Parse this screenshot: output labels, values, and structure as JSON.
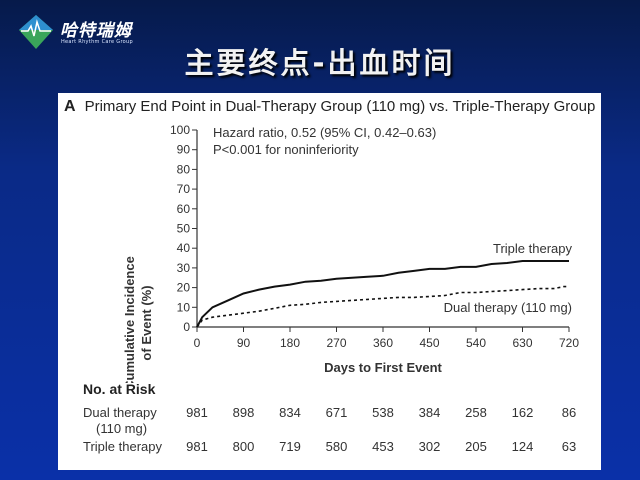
{
  "header": {
    "logo_cn": "哈特瑞姆",
    "logo_en": "Heart Rhythm Care Group",
    "slide_title": "主要终点-出血时间"
  },
  "panel": {
    "letter": "A",
    "title": "Primary End Point in Dual-Therapy Group (110 mg) vs. Triple-Therapy Group"
  },
  "annotations": {
    "hazard_ratio": "Hazard ratio, 0.52 (95% CI, 0.42–0.63)",
    "p_value": "P<0.001 for noninferiority"
  },
  "chart_data": {
    "type": "line",
    "title": "Primary End Point in Dual-Therapy Group (110 mg) vs. Triple-Therapy Group",
    "xlabel": "Days to First Event",
    "ylabel": "Cumulative Incidence of Event (%)",
    "ylabel_lines": [
      "Cumulative Incidence",
      "of Event (%)"
    ],
    "xlim": [
      0,
      720
    ],
    "ylim": [
      0,
      100
    ],
    "x_ticks": [
      0,
      90,
      180,
      270,
      360,
      450,
      540,
      630,
      720
    ],
    "y_ticks": [
      0,
      10,
      20,
      30,
      40,
      50,
      60,
      70,
      80,
      90,
      100
    ],
    "grid": false,
    "series": [
      {
        "name": "Triple therapy",
        "style": "solid",
        "x": [
          0,
          10,
          30,
          60,
          90,
          120,
          150,
          180,
          210,
          240,
          270,
          300,
          330,
          360,
          390,
          420,
          450,
          480,
          510,
          540,
          570,
          600,
          630,
          660,
          690,
          720
        ],
        "y": [
          0,
          5,
          10,
          13.5,
          17,
          19,
          20.5,
          21.5,
          23,
          23.5,
          24.5,
          25,
          25.5,
          26,
          27.5,
          28.5,
          29.5,
          29.5,
          30.5,
          30.5,
          32,
          32.5,
          33.5,
          33.5,
          33.5,
          33.5
        ]
      },
      {
        "name": "Dual therapy (110 mg)",
        "style": "dashed",
        "x": [
          0,
          10,
          30,
          60,
          90,
          120,
          150,
          180,
          210,
          240,
          270,
          300,
          330,
          360,
          390,
          420,
          450,
          480,
          510,
          540,
          570,
          600,
          630,
          660,
          690,
          710,
          720
        ],
        "y": [
          0,
          3.5,
          5,
          6,
          7,
          8,
          9.5,
          11,
          11.5,
          12.5,
          13,
          13.5,
          14,
          14.5,
          15,
          15,
          15.5,
          16,
          17.5,
          17.5,
          18,
          18.5,
          19,
          19.5,
          19.5,
          20.5,
          20.5
        ]
      }
    ],
    "series_labels": {
      "triple": "Triple therapy",
      "dual": "Dual therapy (110 mg)"
    },
    "risk_table": {
      "title": "No. at Risk",
      "rows": [
        {
          "label": "Dual therapy",
          "label_line2": "(110 mg)",
          "values": [
            981,
            898,
            834,
            671,
            538,
            384,
            258,
            162,
            86
          ]
        },
        {
          "label": "Triple therapy",
          "values": [
            981,
            800,
            719,
            580,
            453,
            302,
            205,
            124,
            63
          ]
        }
      ]
    }
  }
}
